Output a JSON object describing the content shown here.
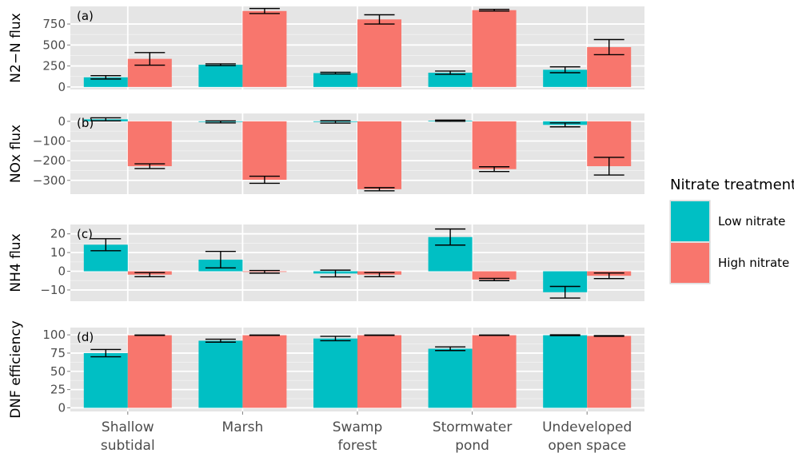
{
  "chart_data": {
    "type": "bar",
    "categories": [
      "Shallow subtidal",
      "Marsh",
      "Swamp forest",
      "Stormwater pond",
      "Undeveloped open space"
    ],
    "category_lines": [
      [
        "Shallow",
        "subtidal"
      ],
      [
        "Marsh"
      ],
      [
        "Swamp",
        "forest"
      ],
      [
        "Stormwater",
        "pond"
      ],
      [
        "Undeveloped",
        "open space"
      ]
    ],
    "legend": {
      "title": "Nitrate treatment",
      "placement": "right",
      "entries": [
        {
          "label": "Low nitrate",
          "color": "#00bfc4"
        },
        {
          "label": "High nitrate",
          "color": "#f8766d"
        }
      ]
    },
    "grid": true,
    "panels": [
      {
        "tag": "(a)",
        "ylabel": "N2−N flux",
        "ylim": [
          -30,
          960
        ],
        "yticks": [
          0,
          250,
          500,
          750
        ],
        "ytick_labels": [
          "0",
          "250",
          "500",
          "750"
        ],
        "series": [
          {
            "name": "Low nitrate",
            "values": [
              115,
              265,
              165,
              170,
              205
            ],
            "err": [
              20,
              10,
              10,
              20,
              35
            ]
          },
          {
            "name": "High nitrate",
            "values": [
              335,
              905,
              805,
              915,
              475
            ],
            "err": [
              75,
              30,
              55,
              10,
              90
            ]
          }
        ]
      },
      {
        "tag": "(b)",
        "ylabel": "NOx flux",
        "ylim": [
          -370,
          40
        ],
        "yticks": [
          0,
          -100,
          -200,
          -300
        ],
        "ytick_labels": [
          "0",
          "−100",
          "−200",
          "−300"
        ],
        "series": [
          {
            "name": "Low nitrate",
            "values": [
              10,
              -3,
              -3,
              3,
              -18
            ],
            "err": [
              8,
              5,
              6,
              3,
              10
            ]
          },
          {
            "name": "High nitrate",
            "values": [
              -228,
              -297,
              -345,
              -243,
              -228
            ],
            "err": [
              12,
              18,
              8,
              12,
              45
            ]
          }
        ]
      },
      {
        "tag": "(c)",
        "ylabel": "NH4 flux",
        "ylim": [
          -16,
          25
        ],
        "yticks": [
          20,
          10,
          0,
          -10
        ],
        "ytick_labels": [
          "20",
          "10",
          "0",
          "−10"
        ],
        "series": [
          {
            "name": "Low nitrate",
            "values": [
              14.2,
              6.2,
              -1.2,
              18.3,
              -11.2
            ],
            "err": [
              3.2,
              4.4,
              1.8,
              4.3,
              3.1
            ]
          },
          {
            "name": "High nitrate",
            "values": [
              -1.8,
              -0.3,
              -1.8,
              -4.4,
              -2.4
            ],
            "err": [
              1.1,
              0.7,
              1.1,
              0.6,
              1.5
            ]
          }
        ]
      },
      {
        "tag": "(d)",
        "ylabel": "DNF efficiency",
        "ylim": [
          -5,
          110
        ],
        "yticks": [
          0,
          25,
          50,
          75,
          100
        ],
        "ytick_labels": [
          "0",
          "25",
          "50",
          "75",
          "100"
        ],
        "series": [
          {
            "name": "Low nitrate",
            "values": [
              75,
              92,
              95,
              81,
              99.5
            ],
            "err": [
              5,
              2,
              3,
              2.5,
              0.5
            ]
          },
          {
            "name": "High nitrate",
            "values": [
              99.5,
              99.5,
              99.5,
              99.5,
              98.5
            ],
            "err": [
              0.3,
              0.3,
              0.3,
              0.3,
              0.5
            ]
          }
        ]
      }
    ]
  }
}
